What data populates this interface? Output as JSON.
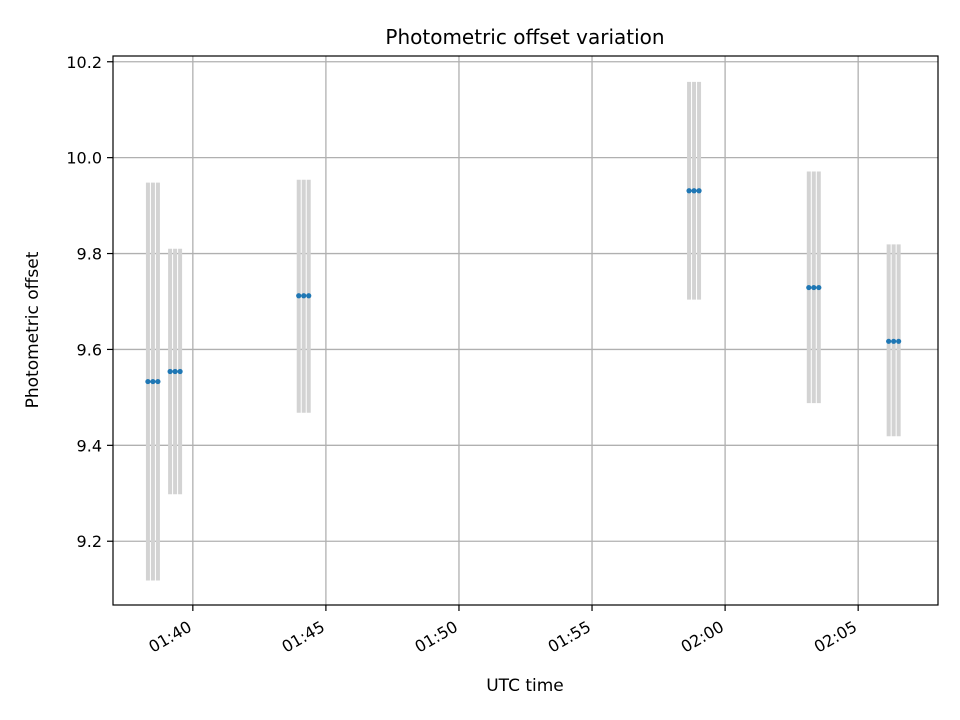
{
  "chart_data": {
    "type": "scatter",
    "title": "Photometric offset variation",
    "xlabel": "UTC time",
    "ylabel": "Photometric offset",
    "xlim": [
      "01:37:00",
      "02:08:00"
    ],
    "ylim": [
      9.067,
      10.212
    ],
    "xticks": [
      "01:40",
      "01:45",
      "01:50",
      "01:55",
      "02:00",
      "02:05"
    ],
    "yticks": [
      "9.2",
      "9.4",
      "9.6",
      "9.8",
      "10.0",
      "10.2"
    ],
    "grid": true,
    "marker_color": "#1f77b4",
    "errorbar_color": "#d3d3d3",
    "groups": [
      {
        "time": "01:38:30",
        "y": 9.533,
        "y_low": 9.118,
        "y_high": 9.948
      },
      {
        "time": "01:39:20",
        "y": 9.554,
        "y_low": 9.298,
        "y_high": 9.81
      },
      {
        "time": "01:44:10",
        "y": 9.712,
        "y_low": 9.468,
        "y_high": 9.954
      },
      {
        "time": "01:58:50",
        "y": 9.931,
        "y_low": 9.704,
        "y_high": 10.158
      },
      {
        "time": "02:03:20",
        "y": 9.729,
        "y_low": 9.488,
        "y_high": 9.971
      },
      {
        "time": "02:06:20",
        "y": 9.617,
        "y_low": 9.419,
        "y_high": 9.819
      }
    ]
  }
}
